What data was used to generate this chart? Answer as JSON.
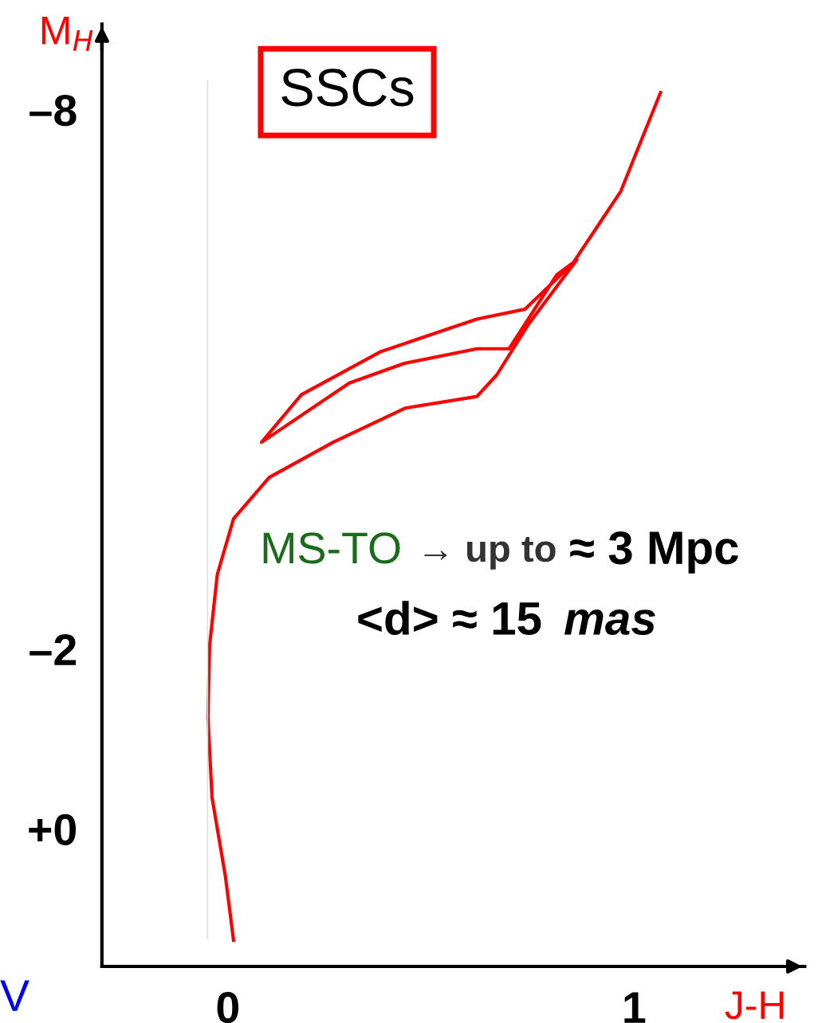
{
  "chart_data": {
    "type": "line",
    "xlabel": "J-H",
    "ylabel": "M$_{H}$",
    "annotations": [
      "SSCs",
      "MS-TO",
      "→ up to",
      "≈ 3 Mpc",
      "<d> ≈ 15",
      "mas",
      "V"
    ],
    "series": [
      {
        "color": "#ff0000",
        "x": [
          0.014,
          -0.006,
          -0.039,
          -0.049,
          -0.045,
          -0.026,
          0.014,
          0.102,
          0.259,
          0.436,
          0.613,
          0.662,
          0.741,
          0.859,
          0.809,
          0.692,
          0.613,
          0.436,
          0.299,
          0.083,
          0.181,
          0.377,
          0.613,
          0.731,
          0.849,
          0.967,
          1.065
        ],
        "values": [
          1.24,
          0.53,
          -0.35,
          -1.24,
          -2.04,
          -2.83,
          -3.45,
          -3.91,
          -4.3,
          -4.68,
          -4.81,
          -5.05,
          -5.62,
          -6.33,
          -6.16,
          -5.34,
          -5.34,
          -5.18,
          -4.96,
          -4.3,
          -4.83,
          -5.31,
          -5.67,
          -5.78,
          -6.29,
          -7.09,
          -8.19
        ]
      }
    ],
    "ref_lines": [
      {
        "axis": "x",
        "value": -0.05,
        "color": "#dddddd"
      }
    ],
    "xlim": [
      -0.31,
      1.42
    ],
    "ylim": [
      1.53,
      -8.95
    ],
    "xticks": [
      0,
      1
    ],
    "yticks": [
      {
        "value": -8,
        "label": "–8"
      },
      {
        "value": -2,
        "label": "–2"
      },
      {
        "value": 0,
        "label": "+0"
      }
    ],
    "grid": false,
    "legend": false,
    "marker": "none",
    "line_style": "solid"
  }
}
